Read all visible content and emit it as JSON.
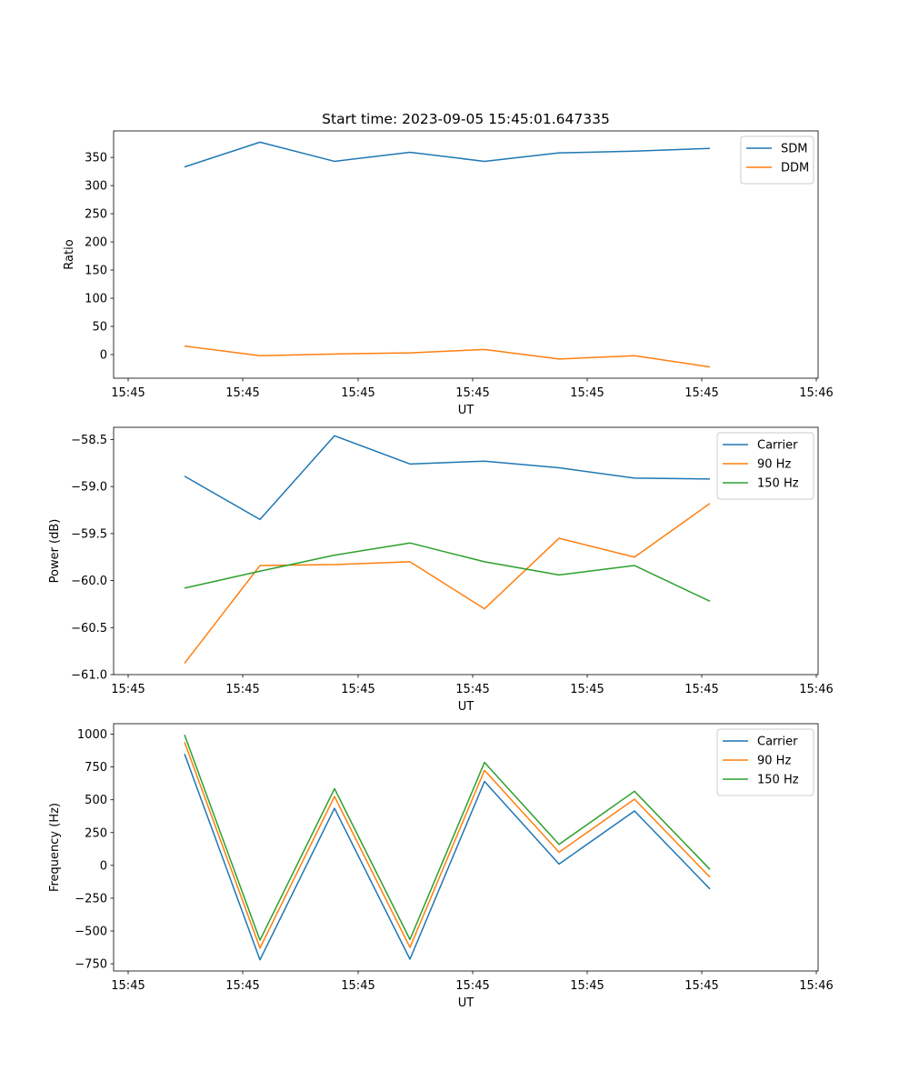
{
  "figure_title": "Start time: 2023-09-05 15:45:01.647335",
  "colors": {
    "blue": "#1f77b4",
    "orange": "#ff7f0e",
    "green": "#2ca02c"
  },
  "chart_data": [
    {
      "type": "line",
      "title": "Start time: 2023-09-05 15:45:01.647335",
      "xlabel": "UT",
      "ylabel": "Ratio",
      "x_tick_labels": [
        "15:45",
        "15:45",
        "15:45",
        "15:45",
        "15:45",
        "15:45",
        "15:45",
        "15:46"
      ],
      "y_ticks": [
        0,
        50,
        100,
        150,
        200,
        250,
        300,
        350
      ],
      "ylim": [
        -42,
        397
      ],
      "legend_position": "top-right",
      "series": [
        {
          "name": "SDM",
          "color": "#1f77b4",
          "values": [
            333,
            377,
            343,
            359,
            343,
            358,
            361,
            366
          ]
        },
        {
          "name": "DDM",
          "color": "#ff7f0e",
          "values": [
            15,
            -2,
            1,
            3,
            9,
            -8,
            -2,
            -22
          ]
        }
      ]
    },
    {
      "type": "line",
      "title": "",
      "xlabel": "UT",
      "ylabel": "Power (dB)",
      "x_tick_labels": [
        "15:45",
        "15:45",
        "15:45",
        "15:45",
        "15:45",
        "15:45",
        "15:45",
        "15:46"
      ],
      "y_ticks": [
        -61.0,
        -60.5,
        -60.0,
        -59.5,
        -59.0,
        -58.5
      ],
      "ylim": [
        -61.0,
        -58.37
      ],
      "legend_position": "top-right",
      "series": [
        {
          "name": "Carrier",
          "color": "#1f77b4",
          "values": [
            -58.89,
            -59.35,
            -58.46,
            -58.76,
            -58.73,
            -58.8,
            -58.91,
            -58.92
          ]
        },
        {
          "name": "90 Hz",
          "color": "#ff7f0e",
          "values": [
            -60.88,
            -59.84,
            -59.83,
            -59.8,
            -60.3,
            -59.55,
            -59.75,
            -59.18
          ]
        },
        {
          "name": "150 Hz",
          "color": "#2ca02c",
          "values": [
            -60.08,
            -59.9,
            -59.73,
            -59.6,
            -59.8,
            -59.94,
            -59.84,
            -60.22
          ]
        }
      ]
    },
    {
      "type": "line",
      "title": "",
      "xlabel": "UT",
      "ylabel": "Frequency (Hz)",
      "x_tick_labels": [
        "15:45",
        "15:45",
        "15:45",
        "15:45",
        "15:45",
        "15:45",
        "15:45",
        "15:46"
      ],
      "y_ticks": [
        -750,
        -500,
        -250,
        0,
        250,
        500,
        750,
        1000
      ],
      "ylim": [
        -805,
        1080
      ],
      "legend_position": "top-right",
      "series": [
        {
          "name": "Carrier",
          "color": "#1f77b4",
          "values": [
            850,
            -720,
            435,
            -715,
            640,
            10,
            415,
            -180
          ]
        },
        {
          "name": "90 Hz",
          "color": "#ff7f0e",
          "values": [
            940,
            -630,
            525,
            -625,
            725,
            100,
            505,
            -90
          ]
        },
        {
          "name": "150 Hz",
          "color": "#2ca02c",
          "values": [
            995,
            -570,
            585,
            -565,
            785,
            160,
            565,
            -30
          ]
        }
      ]
    }
  ]
}
